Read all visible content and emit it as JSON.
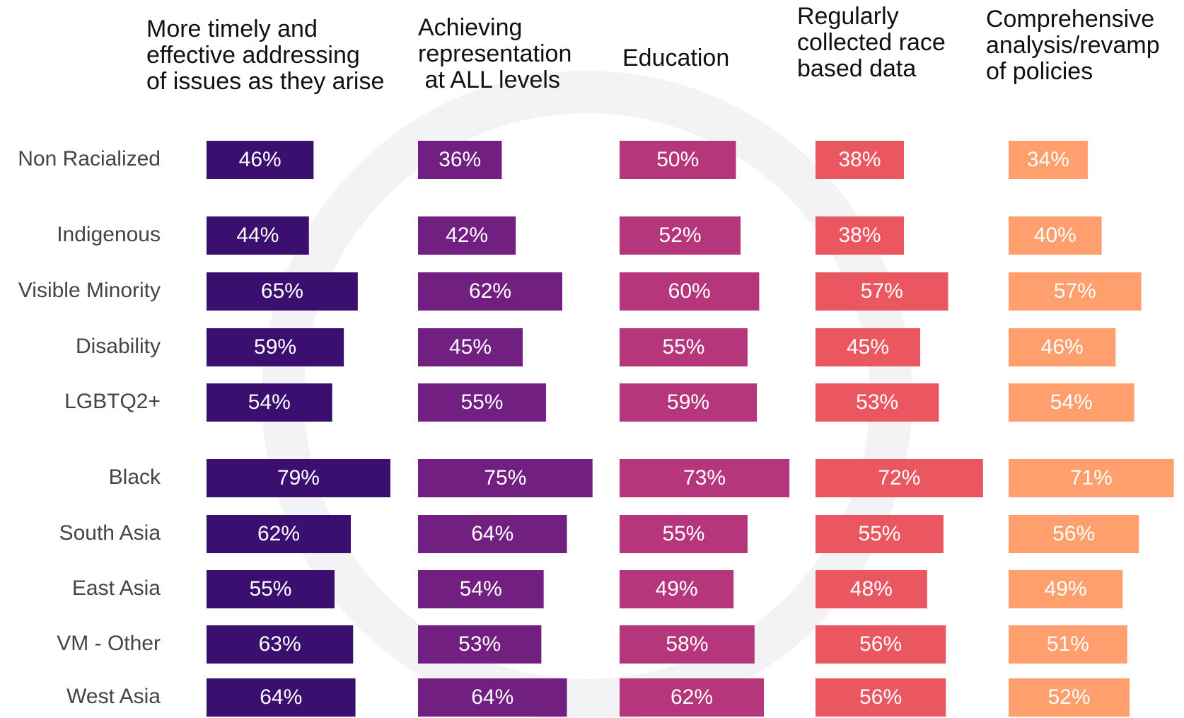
{
  "chart_data": {
    "type": "bar",
    "categories": [
      "Non Racialized",
      "Indigenous",
      "Visible Minority",
      "Disability",
      "LGBTQ2+",
      "Black",
      "South Asia",
      "East Asia",
      "VM - Other",
      "West Asia"
    ],
    "series": [
      {
        "name": "More timely and\neffective addressing\nof issues as they arise",
        "color": "#3b0f6f",
        "values": [
          46,
          44,
          65,
          59,
          54,
          79,
          62,
          55,
          63,
          64
        ],
        "value_labels": [
          "46%",
          "44%",
          "65%",
          "59%",
          "54%",
          "79%",
          "62%",
          "55%",
          "63%",
          "64%"
        ]
      },
      {
        "name": "Achieving\nrepresentation\n at ALL levels",
        "color": "#711f80",
        "values": [
          36,
          42,
          62,
          45,
          55,
          75,
          64,
          54,
          53,
          64
        ],
        "value_labels": [
          "36%",
          "42%",
          "62%",
          "45%",
          "55%",
          "75%",
          "64%",
          "54%",
          "53%",
          "64%"
        ]
      },
      {
        "name": "Education",
        "color": "#b5367a",
        "values": [
          50,
          52,
          60,
          55,
          59,
          73,
          55,
          49,
          58,
          62
        ],
        "value_labels": [
          "50%",
          "52%",
          "60%",
          "55%",
          "59%",
          "73%",
          "55%",
          "49%",
          "58%",
          "62%"
        ]
      },
      {
        "name": "Regularly\ncollected race\nbased data",
        "color": "#eb5760",
        "values": [
          38,
          38,
          57,
          45,
          53,
          72,
          55,
          48,
          56,
          56
        ],
        "value_labels": [
          "38%",
          "38%",
          "57%",
          "45%",
          "53%",
          "72%",
          "55%",
          "48%",
          "56%",
          "56%"
        ]
      },
      {
        "name": "Comprehensive\nanalysis/revamp\nof policies",
        "color": "#fe9f6d",
        "values": [
          34,
          40,
          57,
          46,
          54,
          71,
          56,
          49,
          51,
          52
        ],
        "value_labels": [
          "34%",
          "40%",
          "57%",
          "46%",
          "54%",
          "71%",
          "56%",
          "49%",
          "51%",
          "52%"
        ]
      }
    ]
  }
}
